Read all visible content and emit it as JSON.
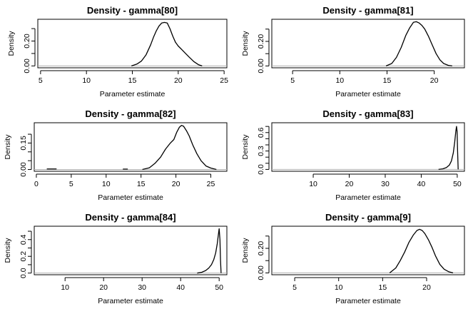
{
  "chart_data": [
    {
      "type": "line",
      "title": "Density - gamma[80]",
      "xlabel": "Parameter estimate",
      "ylabel": "Density",
      "xlim": [
        4.7,
        25.3
      ],
      "ylim": [
        -0.015,
        0.375
      ],
      "x_ticks": [
        5,
        10,
        15,
        20,
        25
      ],
      "y_ticks": [
        0.0,
        0.1,
        0.2,
        0.3
      ],
      "y_tick_labels": [
        "0.00",
        "",
        "0.20",
        ""
      ],
      "series": [
        {
          "x": [
            14.9,
            15.5,
            16.0,
            16.5,
            17.0,
            17.3,
            17.6,
            17.9,
            18.2,
            18.5,
            18.8,
            19.1,
            19.4,
            19.7,
            20.0,
            20.4,
            20.8,
            21.2,
            21.7,
            22.2,
            22.6
          ],
          "y": [
            0.0,
            0.015,
            0.04,
            0.09,
            0.17,
            0.23,
            0.28,
            0.32,
            0.345,
            0.35,
            0.345,
            0.3,
            0.24,
            0.19,
            0.16,
            0.13,
            0.1,
            0.07,
            0.035,
            0.01,
            0.0
          ]
        }
      ]
    },
    {
      "type": "line",
      "title": "Density - gamma[81]",
      "xlabel": "Parameter estimate",
      "ylabel": "Density",
      "xlim": [
        2.8,
        23.2
      ],
      "ylim": [
        -0.015,
        0.38
      ],
      "x_ticks": [
        5,
        10,
        15,
        20
      ],
      "y_ticks": [
        0.0,
        0.1,
        0.2,
        0.3
      ],
      "y_tick_labels": [
        "0.00",
        "",
        "0.20",
        ""
      ],
      "series": [
        {
          "x": [
            14.9,
            15.5,
            16.0,
            16.5,
            17.0,
            17.4,
            17.8,
            18.1,
            18.4,
            18.7,
            19.0,
            19.4,
            19.8,
            20.2,
            20.6,
            21.0,
            21.5,
            21.9
          ],
          "y": [
            0.0,
            0.02,
            0.07,
            0.15,
            0.25,
            0.31,
            0.355,
            0.36,
            0.35,
            0.33,
            0.3,
            0.24,
            0.17,
            0.1,
            0.05,
            0.02,
            0.005,
            0.0
          ]
        }
      ]
    },
    {
      "type": "line",
      "title": "Density - gamma[82]",
      "xlabel": "Parameter estimate",
      "ylabel": "Density",
      "xlim": [
        -0.3,
        27.3
      ],
      "ylim": [
        -0.01,
        0.265
      ],
      "x_ticks": [
        0,
        5,
        10,
        15,
        20,
        25
      ],
      "y_ticks": [
        0.0,
        0.05,
        0.1,
        0.15,
        0.2
      ],
      "y_tick_labels": [
        "0.00",
        "",
        "",
        "0.15",
        ""
      ],
      "series": [
        {
          "x": [
            1.5,
            2.9
          ],
          "y": [
            0.003,
            0.003
          ]
        },
        {
          "x": [
            12.4,
            13.1
          ],
          "y": [
            0.002,
            0.002
          ]
        },
        {
          "x": [
            15.2,
            16.2,
            17.0,
            17.8,
            18.5,
            19.2,
            19.7,
            20.1,
            20.5,
            20.8,
            21.1,
            21.5,
            21.9,
            22.4,
            23.0,
            23.6,
            24.3,
            25.0,
            25.8
          ],
          "y": [
            0.0,
            0.01,
            0.035,
            0.07,
            0.115,
            0.15,
            0.17,
            0.21,
            0.24,
            0.25,
            0.245,
            0.22,
            0.19,
            0.14,
            0.09,
            0.05,
            0.02,
            0.008,
            0.0
          ]
        }
      ]
    },
    {
      "type": "line",
      "title": "Density - gamma[83]",
      "xlabel": "Parameter estimate",
      "ylabel": "Density",
      "xlim": [
        -1.5,
        52.0
      ],
      "ylim": [
        -0.03,
        0.76
      ],
      "x_ticks": [
        10,
        20,
        30,
        40,
        50
      ],
      "y_ticks": [
        0.0,
        0.1,
        0.2,
        0.3,
        0.4,
        0.5,
        0.6,
        0.7
      ],
      "y_tick_labels": [
        "0.0",
        "",
        "",
        "0.3",
        "",
        "",
        "0.6",
        ""
      ],
      "series": [
        {
          "x": [
            44.8,
            46.0,
            47.0,
            47.8,
            48.4,
            48.9,
            49.3,
            49.6,
            49.8,
            49.95,
            50.1,
            50.25
          ],
          "y": [
            0.0,
            0.01,
            0.03,
            0.07,
            0.14,
            0.27,
            0.45,
            0.62,
            0.7,
            0.62,
            0.3,
            0.0
          ]
        }
      ]
    },
    {
      "type": "line",
      "title": "Density - gamma[84]",
      "xlabel": "Parameter estimate",
      "ylabel": "Density",
      "xlim": [
        2.0,
        52.0
      ],
      "ylim": [
        -0.02,
        0.56
      ],
      "x_ticks": [
        10,
        20,
        30,
        40,
        50
      ],
      "y_ticks": [
        0.0,
        0.1,
        0.2,
        0.3,
        0.4,
        0.5
      ],
      "y_tick_labels": [
        "0.0",
        "",
        "0.2",
        "",
        "0.4",
        ""
      ],
      "series": [
        {
          "x": [
            44.3,
            45.5,
            46.5,
            47.3,
            48.0,
            48.6,
            49.1,
            49.5,
            49.8,
            50.0,
            50.2,
            50.35,
            50.5
          ],
          "y": [
            0.0,
            0.01,
            0.03,
            0.06,
            0.1,
            0.16,
            0.24,
            0.35,
            0.46,
            0.53,
            0.4,
            0.15,
            0.0
          ]
        }
      ]
    },
    {
      "type": "line",
      "title": "Density - gamma[9]",
      "xlabel": "Parameter estimate",
      "ylabel": "Density",
      "xlim": [
        2.4,
        24.3
      ],
      "ylim": [
        -0.015,
        0.38
      ],
      "x_ticks": [
        5,
        10,
        15,
        20
      ],
      "y_ticks": [
        0.0,
        0.1,
        0.2,
        0.3
      ],
      "y_tick_labels": [
        "0.00",
        "",
        "0.20",
        ""
      ],
      "series": [
        {
          "x": [
            15.8,
            16.5,
            17.0,
            17.5,
            18.0,
            18.5,
            18.9,
            19.2,
            19.5,
            19.8,
            20.2,
            20.6,
            21.0,
            21.5,
            22.0,
            22.5,
            23.0
          ],
          "y": [
            0.0,
            0.04,
            0.1,
            0.17,
            0.25,
            0.31,
            0.345,
            0.355,
            0.345,
            0.32,
            0.27,
            0.21,
            0.14,
            0.07,
            0.03,
            0.01,
            0.0
          ]
        }
      ]
    }
  ]
}
